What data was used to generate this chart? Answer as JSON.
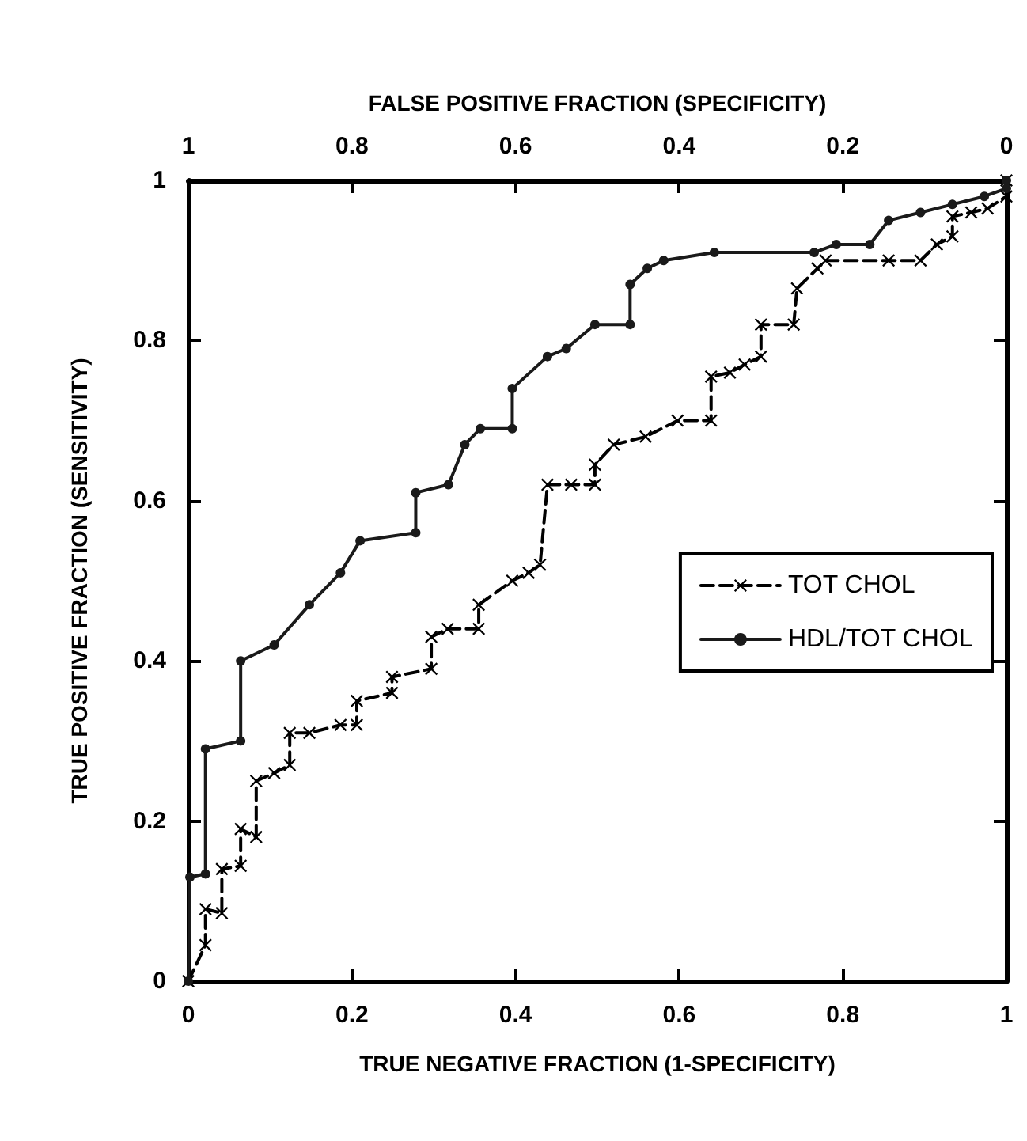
{
  "chart_data": {
    "type": "line",
    "xlabel": "TRUE NEGATIVE FRACTION (1-SPECIFICITY)",
    "x2label": "FALSE POSITIVE FRACTION (SPECIFICITY)",
    "ylabel": "TRUE POSITIVE FRACTION (SENSITIVITY)",
    "xlim": [
      0,
      1
    ],
    "xticks": [
      0,
      0.2,
      0.4,
      0.6,
      0.8,
      1
    ],
    "x2lim": [
      1,
      0
    ],
    "x2ticks": [
      1,
      0.8,
      0.6,
      0.4,
      0.2,
      0
    ],
    "ylim": [
      0,
      1
    ],
    "yticks": [
      0,
      0.2,
      0.4,
      0.6,
      0.8,
      1
    ],
    "grid": false,
    "legend": "right",
    "series": [
      {
        "name": "TOT CHOL",
        "color": "#000000",
        "marker": "cross",
        "line_style": "dashed",
        "x": [
          0,
          0.021,
          0.021,
          0.041,
          0.041,
          0.064,
          0.064,
          0.083,
          0.083,
          0.105,
          0.124,
          0.124,
          0.148,
          0.186,
          0.206,
          0.206,
          0.249,
          0.249,
          0.297,
          0.297,
          0.317,
          0.355,
          0.355,
          0.396,
          0.416,
          0.43,
          0.439,
          0.468,
          0.497,
          0.497,
          0.52,
          0.559,
          0.598,
          0.639,
          0.639,
          0.662,
          0.68,
          0.7,
          0.7,
          0.74,
          0.744,
          0.769,
          0.779,
          0.856,
          0.895,
          0.915,
          0.934,
          0.934,
          0.957,
          0.977,
          1,
          1
        ],
        "values": [
          0,
          0.045,
          0.09,
          0.085,
          0.14,
          0.144,
          0.19,
          0.18,
          0.25,
          0.26,
          0.27,
          0.31,
          0.31,
          0.32,
          0.32,
          0.35,
          0.36,
          0.38,
          0.39,
          0.43,
          0.44,
          0.44,
          0.47,
          0.5,
          0.51,
          0.52,
          0.62,
          0.62,
          0.62,
          0.645,
          0.67,
          0.68,
          0.7,
          0.7,
          0.755,
          0.76,
          0.77,
          0.78,
          0.82,
          0.82,
          0.865,
          0.89,
          0.9,
          0.9,
          0.9,
          0.92,
          0.93,
          0.955,
          0.96,
          0.965,
          0.98,
          1
        ]
      },
      {
        "name": "HDL/TOT CHOL",
        "color": "#1a1a1a",
        "marker": "circle",
        "line_style": "solid",
        "x": [
          0,
          0.002,
          0.021,
          0.021,
          0.064,
          0.064,
          0.105,
          0.148,
          0.186,
          0.21,
          0.278,
          0.278,
          0.318,
          0.338,
          0.357,
          0.396,
          0.396,
          0.439,
          0.462,
          0.497,
          0.54,
          0.54,
          0.561,
          0.581,
          0.643,
          0.765,
          0.792,
          0.833,
          0.856,
          0.895,
          0.934,
          0.973,
          1,
          1
        ],
        "values": [
          0,
          0.13,
          0.134,
          0.29,
          0.3,
          0.4,
          0.42,
          0.47,
          0.51,
          0.55,
          0.56,
          0.61,
          0.62,
          0.67,
          0.69,
          0.69,
          0.74,
          0.78,
          0.79,
          0.82,
          0.82,
          0.87,
          0.89,
          0.9,
          0.91,
          0.91,
          0.92,
          0.92,
          0.95,
          0.96,
          0.97,
          0.98,
          0.99,
          1
        ]
      }
    ]
  }
}
